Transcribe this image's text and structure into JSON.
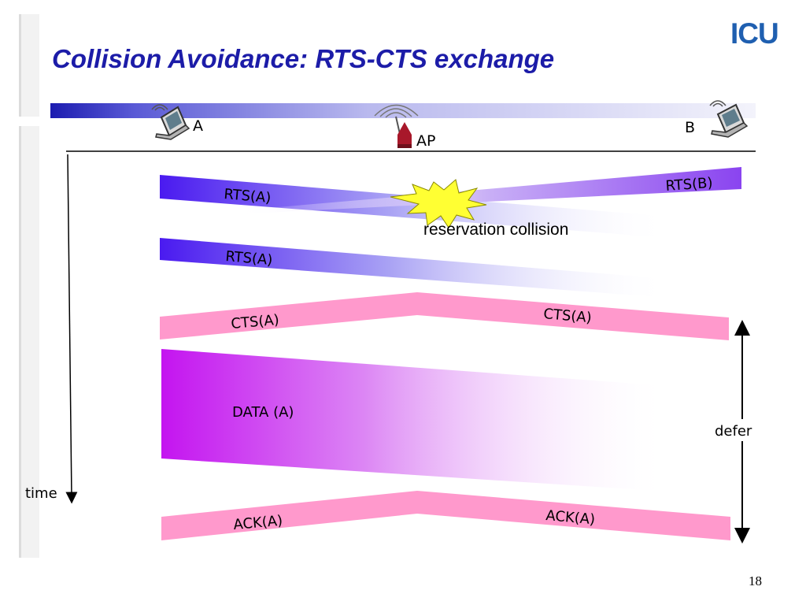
{
  "slide": {
    "title": "Collision Avoidance: RTS-CTS exchange",
    "logo_text": "ICU",
    "page_number": "18"
  },
  "nodes": {
    "a_label": "A",
    "ap_label": "AP",
    "b_label": "B"
  },
  "axis": {
    "time_label": "time",
    "defer_label": "defer"
  },
  "frames": {
    "rts_a_1": "RTS(A)",
    "rts_b": "RTS(B)",
    "collision_note": "reservation collision",
    "rts_a_2": "RTS(A)",
    "cts_a_left": "CTS(A)",
    "cts_a_right": "CTS(A)",
    "data_a": "DATA (A)",
    "ack_a_left": "ACK(A)",
    "ack_a_right": "ACK(A)"
  },
  "colors": {
    "title": "#1c1ca8",
    "rts": "#5522ee",
    "cts_ack": "#ff99cc",
    "data": "#cc11ee",
    "collision": "#ffff33",
    "logo": "#1f5fb0"
  }
}
